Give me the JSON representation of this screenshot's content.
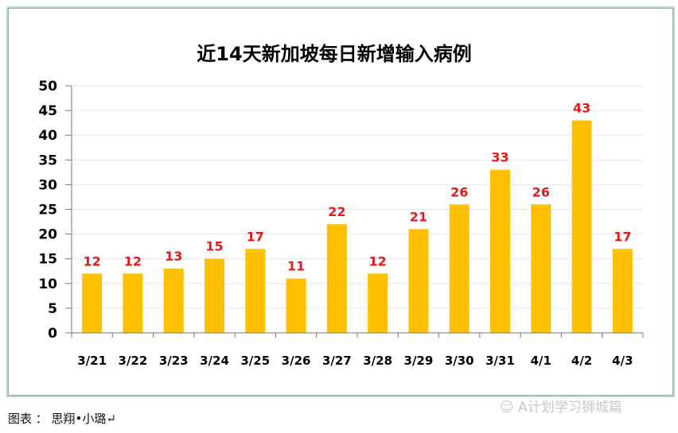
{
  "chart_data": {
    "type": "bar",
    "title": "近14天新加坡每日新增输入病例",
    "categories": [
      "3/21",
      "3/22",
      "3/23",
      "3/24",
      "3/25",
      "3/26",
      "3/27",
      "3/28",
      "3/29",
      "3/30",
      "3/31",
      "4/1",
      "4/2",
      "4/3"
    ],
    "values": [
      12,
      12,
      13,
      15,
      17,
      11,
      22,
      12,
      21,
      26,
      33,
      26,
      43,
      17
    ],
    "ylim": [
      0,
      50
    ],
    "yticks": [
      0,
      5,
      10,
      15,
      20,
      25,
      30,
      35,
      40,
      45,
      50
    ],
    "grid": true,
    "bar_color": "#FFC000",
    "label_color": "#E31A1C"
  },
  "caption": "图表 ： 思翔•小璐↵",
  "watermark": "A计划学习狮城篇"
}
